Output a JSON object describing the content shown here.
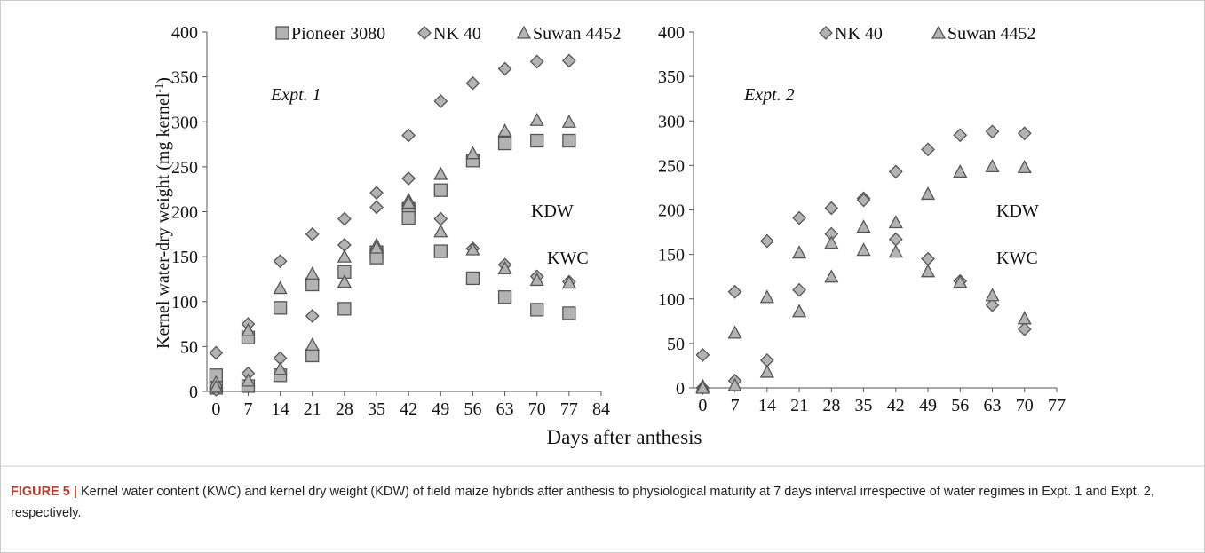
{
  "chart_data": [
    {
      "type": "scatter",
      "annotation": "Expt. 1",
      "kdw_label": "KDW",
      "kwc_label": "KWC",
      "ylabel": "Kernel water-dry weight (mg kernel",
      "ylabel_sup": "-1",
      "ylabel_end": ")",
      "x": [
        0,
        7,
        14,
        21,
        28,
        35,
        42,
        49,
        56,
        63,
        70,
        77
      ],
      "xlim": [
        -2,
        84
      ],
      "xticks": [
        0,
        7,
        14,
        21,
        28,
        35,
        42,
        49,
        56,
        63,
        70,
        77,
        84
      ],
      "ylim": [
        0,
        400
      ],
      "yticks": [
        0,
        50,
        100,
        150,
        200,
        250,
        300,
        350,
        400
      ],
      "series": [
        {
          "name": "Pioneer 3080",
          "marker": "square",
          "color": "#b3b3b3",
          "kdw": [
            18,
            60,
            93,
            119,
            133,
            155,
            203,
            224,
            257,
            276,
            279,
            279
          ],
          "kwc": [
            4,
            6,
            18,
            40,
            92,
            149,
            193,
            156,
            126,
            105,
            91,
            87
          ]
        },
        {
          "name": "NK 40",
          "marker": "diamond",
          "color": "#b3b3b3",
          "kdw": [
            43,
            75,
            145,
            175,
            192,
            221,
            285,
            323,
            343,
            359,
            367,
            368
          ],
          "kwc": [
            2,
            20,
            37,
            84,
            163,
            205,
            237,
            192,
            159,
            141,
            128,
            122
          ]
        },
        {
          "name": "Suwan 4452",
          "marker": "triangle",
          "color": "#b3b3b3",
          "kdw": [
            10,
            68,
            115,
            131,
            150,
            163,
            213,
            242,
            265,
            290,
            302,
            300
          ],
          "kwc": [
            5,
            12,
            25,
            52,
            122,
            160,
            210,
            178,
            158,
            137,
            124,
            121
          ]
        }
      ]
    },
    {
      "type": "scatter",
      "annotation": "Expt. 2",
      "kdw_label": "KDW",
      "kwc_label": "KWC",
      "x": [
        0,
        7,
        14,
        21,
        28,
        35,
        42,
        49,
        56,
        63,
        70
      ],
      "xlim": [
        -2,
        77
      ],
      "xticks": [
        0,
        7,
        14,
        21,
        28,
        35,
        42,
        49,
        56,
        63,
        70,
        77
      ],
      "ylim": [
        0,
        400
      ],
      "yticks": [
        0,
        50,
        100,
        150,
        200,
        250,
        300,
        350,
        400
      ],
      "series": [
        {
          "name": "NK 40",
          "marker": "diamond",
          "color": "#b3b3b3",
          "kdw": [
            37,
            108,
            165,
            191,
            202,
            213,
            243,
            268,
            284,
            288,
            286
          ],
          "kwc": [
            0,
            8,
            31,
            110,
            173,
            211,
            167,
            145,
            120,
            93,
            66
          ]
        },
        {
          "name": "Suwan 4452",
          "marker": "triangle",
          "color": "#b3b3b3",
          "kdw": [
            2,
            62,
            102,
            152,
            163,
            181,
            186,
            218,
            243,
            249,
            248
          ],
          "kwc": [
            0,
            3,
            18,
            86,
            125,
            155,
            153,
            131,
            119,
            104,
            78
          ]
        }
      ]
    }
  ],
  "x_label": "Days after anthesis",
  "caption_label": "FIGURE 5 |",
  "caption_text": "Kernel water content (KWC) and kernel dry weight (KDW) of field maize hybrids after anthesis to physiological maturity at 7 days interval irrespective of water regimes in Expt. 1 and Expt. 2, respectively."
}
